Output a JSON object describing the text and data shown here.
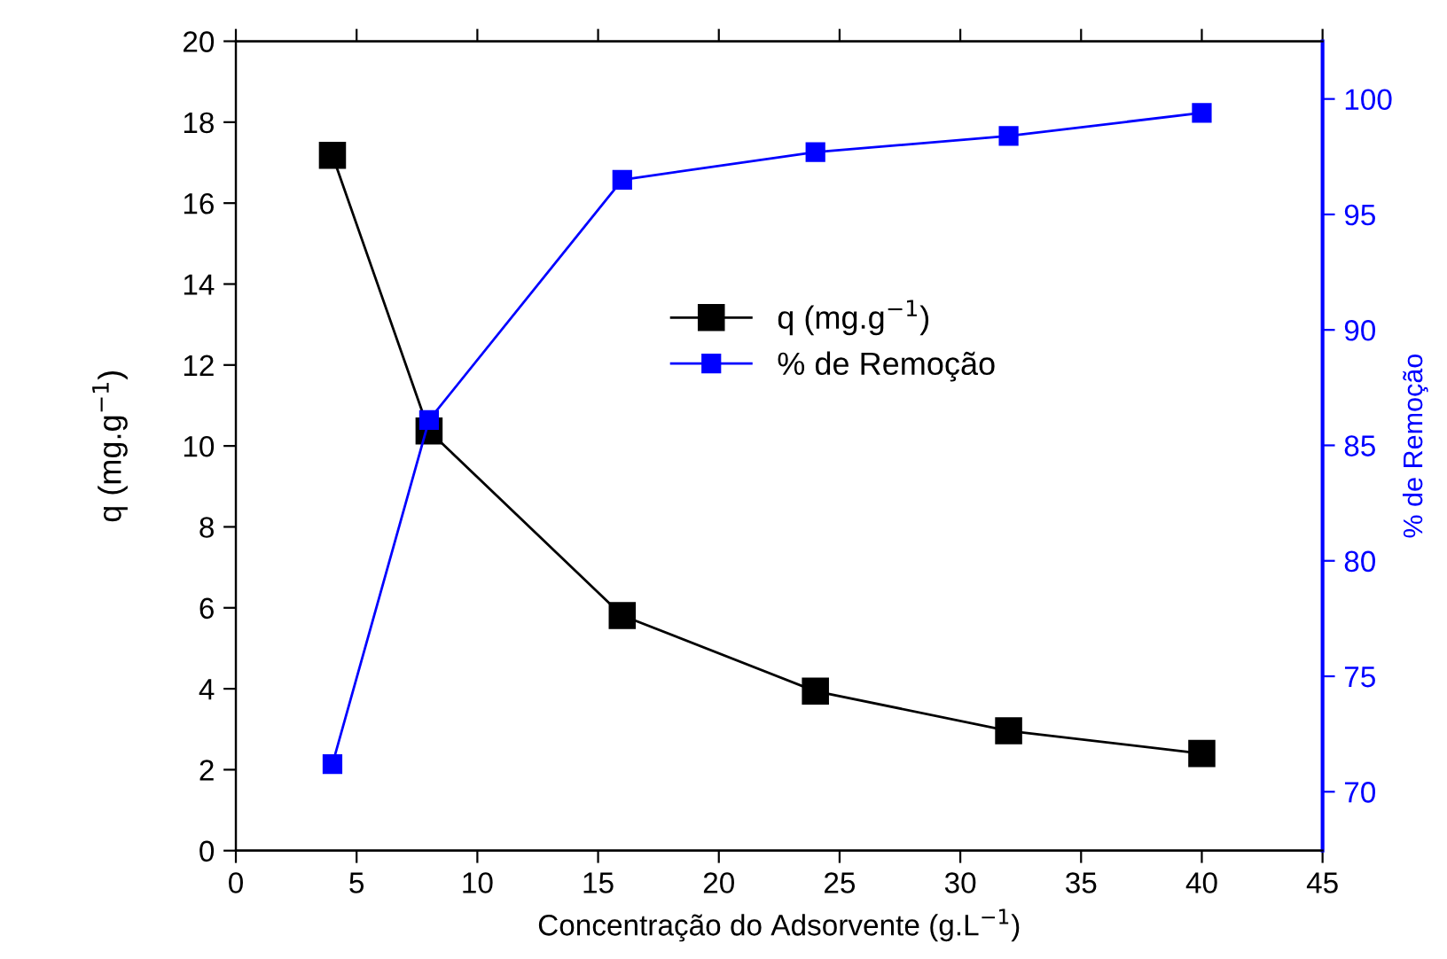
{
  "chart_data": {
    "type": "line",
    "xlabel": "Concentração do Adsorvente (g.L$^{−1}$)",
    "ylabel": "q (mg.g$^{−1}$)",
    "y2label": "% de Remoção",
    "x": [
      4,
      8,
      16,
      24,
      32,
      40
    ],
    "series": [
      {
        "name": "q (mg.g$^{−1}$)",
        "color": "#000000",
        "values": [
          17.18,
          10.37,
          5.81,
          3.94,
          2.96,
          2.4
        ]
      },
      {
        "name": "% de Remoção",
        "color": "#0000ff",
        "axis": "y2",
        "values": [
          71.2,
          86.1,
          96.5,
          97.7,
          98.4,
          99.4
        ]
      }
    ],
    "xlim": [
      0,
      45
    ],
    "xticks": [
      0,
      5,
      10,
      15,
      20,
      25,
      30,
      35,
      40,
      45
    ],
    "ylim": [
      0,
      20
    ],
    "yticks": [
      0,
      2,
      4,
      6,
      8,
      10,
      12,
      14,
      16,
      18,
      20
    ],
    "y2lim": [
      67.45,
      102.5
    ],
    "y2ticks": [
      70,
      75,
      80,
      85,
      90,
      95,
      100
    ],
    "marker": "square",
    "line_style": "solid",
    "grid": false,
    "legend": "center"
  }
}
